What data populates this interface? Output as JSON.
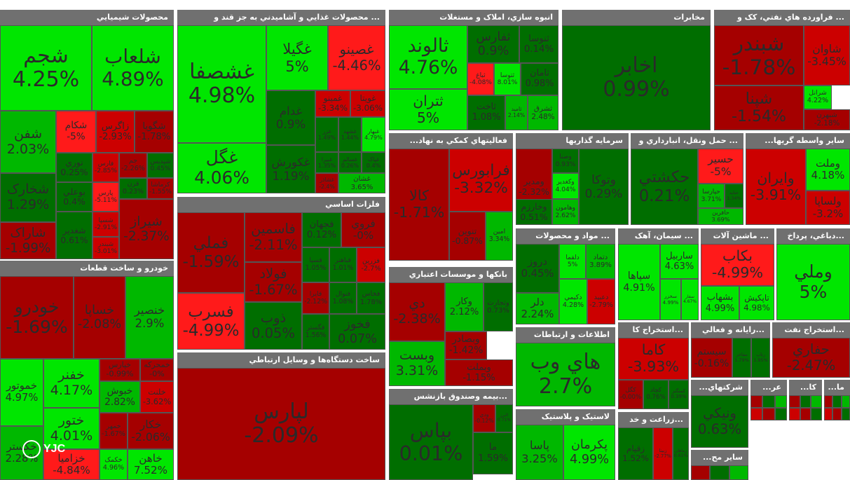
{
  "colors": {
    "strong_green": "#00e600",
    "green": "#00b800",
    "dark_green": "#006e00",
    "dark_red": "#a50000",
    "red": "#cc0000",
    "bright_red": "#ff1a1a",
    "header": "#707070"
  },
  "logo_text": "YJC",
  "chart_data": {
    "type": "treemap",
    "title": "",
    "sectors": [
      {
        "name": "محصولات شيميايي",
        "tiles": [
          {
            "symbol": "شلعاب",
            "change": "4.89%"
          },
          {
            "symbol": "شجم",
            "change": "4.25%"
          },
          {
            "symbol": "شفن",
            "change": "2.03%"
          },
          {
            "symbol": "شکام",
            "change": "-5%"
          },
          {
            "symbol": "شگويا",
            "change": "-1.78%"
          },
          {
            "symbol": "زاگرس",
            "change": "-2.93%"
          },
          {
            "symbol": "شخارک",
            "change": "1.29%"
          },
          {
            "symbol": "شاراک",
            "change": "-1.99%"
          },
          {
            "symbol": "نوري",
            "change": "0.25%"
          },
          {
            "symbol": "بوعلي",
            "change": "0.4%"
          },
          {
            "symbol": "فارس",
            "change": "-2.85%"
          },
          {
            "symbol": "پارس",
            "change": "-5.11%"
          },
          {
            "symbol": "شسپا",
            "change": "-2.91%"
          },
          {
            "symbol": "شبندر",
            "change": "-3.01%"
          },
          {
            "symbol": "شغدير",
            "change": "0.61%"
          },
          {
            "symbol": "جم",
            "change": "-2.26%"
          },
          {
            "symbol": "شپديس",
            "change": "0.45%"
          },
          {
            "symbol": "قرن",
            "change": "0.23%"
          },
          {
            "symbol": "کرماشا",
            "change": "-1.55%"
          },
          {
            "symbol": "شيراز",
            "change": "-2.37%"
          }
        ]
      },
      {
        "name": "محصولات غذايي و آشاميدني به جز قند و ...",
        "tiles": [
          {
            "symbol": "غشصفا",
            "change": "4.98%"
          },
          {
            "symbol": "غگل",
            "change": "4.06%"
          },
          {
            "symbol": "غگيلا",
            "change": "5%"
          },
          {
            "symbol": "غصينو",
            "change": "-4.46%"
          },
          {
            "symbol": "غدام",
            "change": "0.9%"
          },
          {
            "symbol": "غکورش",
            "change": "1.19%"
          },
          {
            "symbol": "غمينو",
            "change": "-3.34%"
          },
          {
            "symbol": "غويتا",
            "change": "-3.06%"
          },
          {
            "symbol": "غزر",
            "change": "1.49%"
          },
          {
            "symbol": "غشهد",
            "change": "1.44%"
          },
          {
            "symbol": "غبهار",
            "change": "4.79%"
          },
          {
            "symbol": "غبيرا",
            "change": "1.35%"
          },
          {
            "symbol": "غسالم",
            "change": "0.26%"
          },
          {
            "symbol": "غپاک",
            "change": "0.4%"
          },
          {
            "symbol": "غشاذر",
            "change": "-2.4%"
          },
          {
            "symbol": "غشان",
            "change": "3.65%"
          }
        ]
      },
      {
        "name": "انبوه سازي، املاک و مستغلات",
        "tiles": [
          {
            "symbol": "ثالوند",
            "change": "4.76%"
          },
          {
            "symbol": "ثتران",
            "change": "5%"
          },
          {
            "symbol": "ثفارس",
            "change": "0.9%"
          },
          {
            "symbol": "ثنوسا",
            "change": "0.14%"
          },
          {
            "symbol": "ثاخت",
            "change": "1.08%"
          },
          {
            "symbol": "ثباغ",
            "change": "-4.08%"
          },
          {
            "symbol": "ثتوسا",
            "change": "8.01%"
          },
          {
            "symbol": "ثامان",
            "change": "0.98%"
          },
          {
            "symbol": "ثاميد",
            "change": "2.14%"
          },
          {
            "symbol": "ثشرق",
            "change": "2.48%"
          }
        ]
      },
      {
        "name": "مخابرات",
        "tiles": [
          {
            "symbol": "اخابر",
            "change": "0.99%"
          }
        ]
      },
      {
        "name": "فراورده هاي نفتي، کک و ...",
        "tiles": [
          {
            "symbol": "شبندر",
            "change": "-1.78%"
          },
          {
            "symbol": "شاوان",
            "change": "-3.45%"
          },
          {
            "symbol": "شپنا",
            "change": "-1.54%"
          },
          {
            "symbol": "شرانل",
            "change": "4.22%"
          },
          {
            "symbol": "شبهرن",
            "change": "-2.18%"
          }
        ]
      },
      {
        "name": "...فعاليتهاي کمکي به نهاد",
        "tiles": [
          {
            "symbol": "کالا",
            "change": "-1.71%"
          },
          {
            "symbol": "فرابورس",
            "change": "-3.32%"
          },
          {
            "symbol": "تنوين",
            "change": "-0.87%"
          },
          {
            "symbol": "امين",
            "change": "3.34%"
          }
        ]
      },
      {
        "name": "سرمايه گذاريها",
        "tiles": [
          {
            "symbol": "ومدير",
            "change": "-2.32%"
          },
          {
            "symbol": "وصنا",
            "change": "0.93%"
          },
          {
            "symbol": "وکغدير",
            "change": "4.04%"
          },
          {
            "symbol": "وخارزم",
            "change": "0.51%"
          },
          {
            "symbol": "وهامون",
            "change": "2.62%"
          },
          {
            "symbol": "وتوکا",
            "change": "0.29%"
          }
        ]
      },
      {
        "name": "حمل ونقل، انبارداري و ...",
        "tiles": [
          {
            "symbol": "حکشتي",
            "change": "0.21%"
          },
          {
            "symbol": "حسير",
            "change": "-5%"
          },
          {
            "symbol": "حپارسا",
            "change": "3.71%"
          },
          {
            "symbol": "حتايد",
            "change": "1.34%"
          },
          {
            "symbol": "حافرين",
            "change": "3.69%"
          }
        ]
      },
      {
        "name": "...ساير واسطه گريها",
        "tiles": [
          {
            "symbol": "وايران",
            "change": "-3.91%"
          },
          {
            "symbol": "وملت",
            "change": "4.18%"
          },
          {
            "symbol": "ولساپا",
            "change": "-3.2%"
          }
        ]
      },
      {
        "name": "فلزات اساسي",
        "tiles": [
          {
            "symbol": "فملي",
            "change": "-1.59%"
          },
          {
            "symbol": "فاسمين",
            "change": "-2.11%"
          },
          {
            "symbol": "فولاد",
            "change": "-1.67%"
          },
          {
            "symbol": "فسرب",
            "change": "-4.99%"
          },
          {
            "symbol": "ذوب",
            "change": "0.05%"
          },
          {
            "symbol": "فجهان",
            "change": "0.12%"
          },
          {
            "symbol": "فروي",
            "change": "-0%"
          },
          {
            "symbol": "فسپا",
            "change": "1.05%"
          },
          {
            "symbol": "فباهنر",
            "change": "1.01%"
          },
          {
            "symbol": "فزرين",
            "change": "-2.7%"
          },
          {
            "symbol": "فايرا",
            "change": "-2.12%"
          },
          {
            "symbol": "فنوال",
            "change": "1.08%"
          },
          {
            "symbol": "فخاس",
            "change": "1.78%"
          },
          {
            "symbol": "فگستر",
            "change": "1.56%"
          },
          {
            "symbol": "فخوز",
            "change": "0.07%"
          }
        ]
      },
      {
        "name": "خودرو و ساخت قطعات",
        "tiles": [
          {
            "symbol": "خودرو",
            "change": "-1.69%"
          },
          {
            "symbol": "خساپا",
            "change": "-2.08%"
          },
          {
            "symbol": "خنصير",
            "change": "2.9%"
          },
          {
            "symbol": "خموتور",
            "change": "4.97%"
          },
          {
            "symbol": "خفنر",
            "change": "4.17%"
          },
          {
            "symbol": "ختور",
            "change": "4.01%"
          },
          {
            "symbol": "خپارس",
            "change": "-0.99%"
          },
          {
            "symbol": "خمحرکه",
            "change": "-0%"
          },
          {
            "symbol": "خبوش",
            "change": "2.82%"
          },
          {
            "symbol": "خلنت",
            "change": "-3.62%"
          },
          {
            "symbol": "خگستر",
            "change": "2.28%"
          },
          {
            "symbol": "خزامیا",
            "change": "-4.84%"
          },
          {
            "symbol": "خکمک",
            "change": "4.96%"
          },
          {
            "symbol": "خمهر",
            "change": "-1.67%"
          },
          {
            "symbol": "خکار",
            "change": "-2.06%"
          },
          {
            "symbol": "خاهن",
            "change": "7.52%"
          }
        ]
      },
      {
        "name": "ساخت دستگاه‌ها و وسايل ارتباطي",
        "tiles": [
          {
            "symbol": "لپارس",
            "change": "-2.09%"
          }
        ]
      },
      {
        "name": "مواد و محصولات ...",
        "tiles": [
          {
            "symbol": "دروز",
            "change": "0.45%"
          },
          {
            "symbol": "دلر",
            "change": "2.24%"
          },
          {
            "symbol": "دلقما",
            "change": "5%"
          },
          {
            "symbol": "دتماد",
            "change": "3.89%"
          },
          {
            "symbol": "دکيمي",
            "change": "4.28%"
          },
          {
            "symbol": "دعبيد",
            "change": "-2.79%"
          }
        ]
      },
      {
        "name": "سيمان، آهک ...",
        "tiles": [
          {
            "symbol": "سپاها",
            "change": "4.91%"
          },
          {
            "symbol": "ساربيل",
            "change": "4.63%"
          },
          {
            "symbol": "سخزر",
            "change": "4.99%"
          },
          {
            "symbol": "سفار",
            "change": "4.67%"
          }
        ]
      },
      {
        "name": "ماشين آلات ...",
        "tiles": [
          {
            "symbol": "بکاب",
            "change": "-4.99%"
          },
          {
            "symbol": "بشهاب",
            "change": "4.99%"
          },
          {
            "symbol": "تاپکيش",
            "change": "4.98%"
          }
        ]
      },
      {
        "name": "دباغي، پرداخ...",
        "tiles": [
          {
            "symbol": "وملي",
            "change": "5%"
          }
        ]
      },
      {
        "name": "بانکها و موسسات اعتباري",
        "tiles": [
          {
            "symbol": "دي",
            "change": "-2.38%"
          },
          {
            "symbol": "وبست",
            "change": "3.31%"
          },
          {
            "symbol": "وکار",
            "change": "2.12%"
          },
          {
            "symbol": "وتجارت",
            "change": "0.73%"
          },
          {
            "symbol": "وبصادر",
            "change": "-1.42%"
          },
          {
            "symbol": "وبملت",
            "change": "-1.15%"
          }
        ]
      },
      {
        "name": "اطلاعات و ارتباطات",
        "tiles": [
          {
            "symbol": "هاي وب",
            "change": "2.7%"
          }
        ]
      },
      {
        "name": "استخراج کا...",
        "tiles": [
          {
            "symbol": "کاما",
            "change": "-3.93%"
          },
          {
            "symbol": "کگل",
            "change": "-0.00%"
          },
          {
            "symbol": "کچاد",
            "change": "0.76%"
          },
          {
            "symbol": "کمنگنز",
            "change": "0.39%"
          }
        ]
      },
      {
        "name": "رايانه و فعالي...",
        "tiles": [
          {
            "symbol": "سيستم",
            "change": "-0.16%"
          },
          {
            "symbol": "مفاخر",
            "change": "1.79%"
          },
          {
            "symbol": "رتاپ",
            "change": "1.95%"
          }
        ]
      },
      {
        "name": "استخراج نفت...",
        "tiles": [
          {
            "symbol": "حفاري",
            "change": "-2.47%"
          }
        ]
      },
      {
        "name": "بيمه وصندوق بازنشس...",
        "tiles": [
          {
            "symbol": "بپاس",
            "change": "0.01%"
          },
          {
            "symbol": "ودي",
            "change": "-0.12%"
          },
          {
            "symbol": "البرز",
            "change": "0.71%"
          },
          {
            "symbol": "ما",
            "change": "1.59%"
          }
        ]
      },
      {
        "name": "لاستيک و پلاستيک",
        "tiles": [
          {
            "symbol": "پاسا",
            "change": "3.25%"
          },
          {
            "symbol": "پکرمان",
            "change": "4.99%"
          }
        ]
      },
      {
        "name": "زراعت و خد...",
        "tiles": [
          {
            "symbol": "زقيام",
            "change": "1.52%"
          },
          {
            "symbol": "زبينا",
            "change": "-2.77%"
          },
          {
            "symbol": "زماهان",
            "change": "0.61%"
          }
        ]
      },
      {
        "name": "...شرکتهاي",
        "tiles": [
          {
            "symbol": "ونيکي",
            "change": "0.63%"
          }
        ]
      },
      {
        "name": "...عر",
        "tiles": []
      },
      {
        "name": "...کا",
        "tiles": []
      },
      {
        "name": "...ما",
        "tiles": []
      },
      {
        "name": "...ساير مح",
        "tiles": []
      }
    ]
  }
}
